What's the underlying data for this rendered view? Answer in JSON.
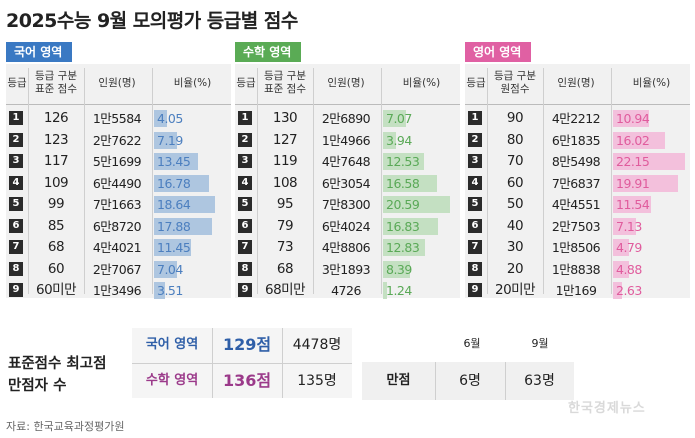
{
  "title": "2025수능 9월 모의평가 등급별 점수",
  "colors": {
    "korean_tag": "#3a79c3",
    "korean_bar": "#aec6e0",
    "korean_pct": "#4c7fbf",
    "math_tag": "#5aab55",
    "math_bar": "#c4e0c2",
    "math_pct": "#5aa957",
    "english_tag": "#e060a3",
    "english_bar": "#f3c0dc",
    "english_pct": "#e05c9d"
  },
  "chart_data": [
    {
      "type": "table",
      "name": "국어 영역",
      "headers": [
        "등급",
        "등급 구분 표준 점수",
        "인원(명)",
        "비율(%)"
      ],
      "grades": [
        "1",
        "2",
        "3",
        "4",
        "5",
        "6",
        "7",
        "8",
        "9"
      ],
      "scores": [
        "126",
        "123",
        "117",
        "109",
        "99",
        "85",
        "68",
        "60",
        "60미만"
      ],
      "counts": [
        "1만5584",
        "2만7622",
        "5만1699",
        "6만4490",
        "7만1663",
        "6만8720",
        "4만4021",
        "2만7067",
        "1만3496"
      ],
      "ratios": [
        4.05,
        7.19,
        13.45,
        16.78,
        18.64,
        17.88,
        11.45,
        7.04,
        3.51
      ],
      "ratio_labels": [
        "4.05",
        "7.19",
        "13.45",
        "16.78",
        "18.64",
        "17.88",
        "11.45",
        "7.04",
        "3.51"
      ]
    },
    {
      "type": "table",
      "name": "수학 영역",
      "headers": [
        "등급",
        "등급 구분 표준 점수",
        "인원(명)",
        "비율(%)"
      ],
      "grades": [
        "1",
        "2",
        "3",
        "4",
        "5",
        "6",
        "7",
        "8",
        "9"
      ],
      "scores": [
        "130",
        "127",
        "119",
        "108",
        "95",
        "79",
        "73",
        "68",
        "68미만"
      ],
      "counts": [
        "2만6890",
        "1만4966",
        "4만7648",
        "6만3054",
        "7만8300",
        "6만4024",
        "4만8806",
        "3만1893",
        "4726"
      ],
      "ratios": [
        7.07,
        3.94,
        12.53,
        16.58,
        20.59,
        16.83,
        12.83,
        8.39,
        1.24
      ],
      "ratio_labels": [
        "7.07",
        "3.94",
        "12.53",
        "16.58",
        "20.59",
        "16.83",
        "12.83",
        "8.39",
        "1.24"
      ]
    },
    {
      "type": "table",
      "name": "영어 영역",
      "headers": [
        "등급",
        "등급 구분 원점수",
        "인원(명)",
        "비율(%)"
      ],
      "grades": [
        "1",
        "2",
        "3",
        "4",
        "5",
        "6",
        "7",
        "8",
        "9"
      ],
      "scores": [
        "90",
        "80",
        "70",
        "60",
        "50",
        "40",
        "30",
        "20",
        "20미만"
      ],
      "counts": [
        "4만2212",
        "6만1835",
        "8만5498",
        "7만6837",
        "4만4551",
        "2만7503",
        "1만8506",
        "1만8838",
        "1만169"
      ],
      "ratios": [
        10.94,
        16.02,
        22.15,
        19.91,
        11.54,
        7.13,
        4.79,
        4.88,
        2.63
      ],
      "ratio_labels": [
        "10.94",
        "16.02",
        "22.15",
        "19.91",
        "11.54",
        "7.13",
        "4.79",
        "4.88",
        "2.63"
      ]
    }
  ],
  "summary": {
    "label_line1": "표준점수 최고점",
    "label_line2": "만점자 수",
    "korean_label": "국어 영역",
    "korean_score": "129점",
    "korean_count": "4478명",
    "math_label": "수학 영역",
    "math_score": "136점",
    "math_count": "135명",
    "english_label": "만점",
    "month_june": "6월",
    "month_sept": "9월",
    "english_june": "6명",
    "english_sept": "63명"
  },
  "source": "자료: 한국교육과정평가원",
  "watermark": "한국경제뉴스"
}
